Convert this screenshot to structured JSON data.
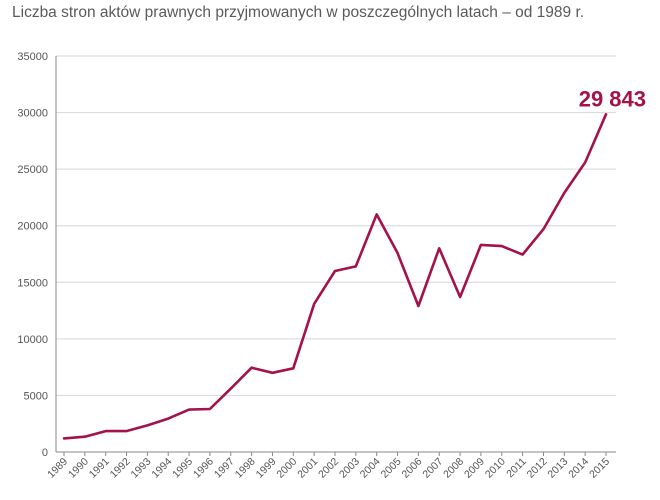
{
  "chart_data": {
    "type": "line",
    "title": "Liczba stron aktów prawnych przyjmowanych w poszczególnych latach – od 1989 r.",
    "xlabel": "",
    "ylabel": "",
    "ylim": [
      0,
      35000
    ],
    "yticks": [
      0,
      5000,
      10000,
      15000,
      20000,
      25000,
      30000,
      35000
    ],
    "grid": "horizontal",
    "x": [
      "1989",
      "1990",
      "1991",
      "1992",
      "1993",
      "1994",
      "1995",
      "1996",
      "1997",
      "1998",
      "1999",
      "2000",
      "2001",
      "2002",
      "2003",
      "2004",
      "2005",
      "2006",
      "2007",
      "2008",
      "2009",
      "2010",
      "2011",
      "2012",
      "2013",
      "2014",
      "2015"
    ],
    "series": [
      {
        "color": "#a3124a",
        "values": [
          1200,
          1350,
          1850,
          1850,
          2350,
          2950,
          3750,
          3800,
          5600,
          7450,
          7000,
          7400,
          13100,
          16000,
          16400,
          21000,
          17600,
          12900,
          18000,
          13700,
          18300,
          18200,
          17450,
          19700,
          22900,
          25600,
          29843
        ]
      }
    ],
    "annotation": {
      "text": "29 843",
      "color": "#a3124a"
    }
  }
}
